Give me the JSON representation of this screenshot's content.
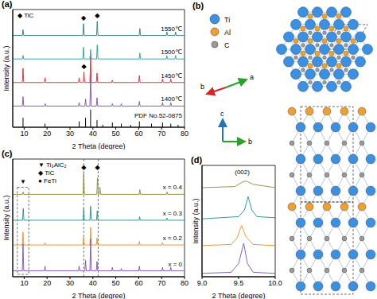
{
  "chart_data": [
    {
      "type": "line",
      "panel": "(a)",
      "x_label": "2 Theta (degree)",
      "y_label": "Intensity (a.u.)",
      "xlim": [
        5,
        80
      ],
      "xticks": [
        10,
        20,
        30,
        40,
        50,
        60,
        70,
        80
      ],
      "ylim": [
        0,
        100
      ],
      "yticks": [],
      "tick_labels": "x",
      "phase_key": [
        {
          "symbol": "◆",
          "name": "TiC"
        }
      ],
      "series": [
        {
          "name": "1550℃",
          "color": "#2d7a78",
          "x": [
            5,
            9.2,
            9.5,
            9.8,
            35.6,
            35.9,
            36.2,
            41.6,
            41.9,
            42.2,
            60.2,
            60.5,
            60.8,
            72.0,
            72.3,
            72.6,
            75.8,
            76.1,
            76.4,
            80
          ],
          "values": [
            78,
            78,
            83,
            78,
            78,
            88,
            78,
            78,
            90,
            78,
            78,
            84,
            78,
            78,
            81,
            78,
            78,
            81,
            78,
            78
          ]
        },
        {
          "name": "1500℃",
          "color": "#22a39a",
          "x": [
            5,
            9.2,
            9.5,
            9.8,
            35.6,
            35.9,
            36.2,
            38.7,
            39.0,
            39.3,
            41.6,
            41.9,
            42.2,
            60.2,
            60.5,
            60.8,
            72.0,
            72.3,
            72.6,
            75.8,
            76.1,
            76.4,
            80
          ],
          "values": [
            58,
            58,
            61,
            58,
            58,
            68,
            58,
            58,
            66,
            58,
            58,
            70,
            58,
            58,
            63,
            58,
            58,
            61,
            58,
            58,
            61,
            58,
            58
          ]
        },
        {
          "name": "1450℃",
          "color": "#d9262c",
          "x": [
            5,
            9.2,
            9.5,
            9.8,
            18.8,
            19.1,
            19.4,
            33.7,
            34.0,
            34.3,
            35.8,
            36.1,
            36.4,
            38.7,
            39.0,
            39.3,
            41.5,
            41.8,
            42.1,
            48.2,
            48.5,
            48.8,
            60.0,
            60.3,
            60.6,
            70.1,
            70.4,
            70.7,
            73.7,
            74.0,
            74.3,
            80
          ],
          "values": [
            38,
            38,
            50,
            38,
            38,
            42,
            38,
            38,
            42,
            38,
            38,
            47,
            38,
            38,
            60,
            38,
            38,
            46,
            38,
            38,
            40,
            38,
            38,
            44,
            38,
            38,
            41,
            38,
            38,
            41,
            38,
            38
          ]
        },
        {
          "name": "1400℃",
          "color": "#7d4fa8",
          "x": [
            5,
            9.2,
            9.5,
            9.8,
            18.9,
            19.2,
            19.5,
            33.7,
            34.0,
            34.3,
            36.5,
            36.8,
            37.1,
            38.7,
            39.0,
            39.3,
            41.5,
            41.8,
            42.1,
            48.2,
            48.5,
            48.8,
            52.1,
            52.4,
            52.7,
            60.0,
            60.3,
            60.6,
            70.1,
            70.4,
            70.7,
            73.7,
            74.0,
            74.3,
            80
          ],
          "values": [
            18,
            18,
            26,
            18,
            18,
            20,
            18,
            18,
            21,
            18,
            18,
            24,
            18,
            18,
            44,
            18,
            18,
            25,
            18,
            18,
            20,
            18,
            18,
            20,
            18,
            18,
            22,
            18,
            18,
            21,
            18,
            18,
            21,
            18,
            18
          ]
        }
      ],
      "reference": {
        "name": "PDF No.52-0875",
        "x": [
          9.5,
          19.1,
          34.0,
          36.8,
          39.0,
          41.8,
          44.3,
          48.5,
          52.4,
          56.5,
          60.3,
          65.6,
          70.4,
          74.0,
          77.2
        ],
        "values": [
          8,
          3,
          5,
          8,
          15,
          6,
          2,
          4,
          3,
          2,
          5,
          3,
          4,
          3,
          2
        ]
      },
      "annotations": [
        {
          "text": "◆",
          "x": 35.9,
          "y": 93
        },
        {
          "text": "◆",
          "x": 41.9,
          "y": 95
        },
        {
          "text": "◆",
          "x": 36.1,
          "y": 52
        }
      ]
    },
    {
      "type": "line",
      "panel": "(c)",
      "x_label": "2 Theta (degree)",
      "y_label": "Intensity (a.u.)",
      "xlim": [
        5,
        80
      ],
      "xticks": [
        10,
        20,
        30,
        40,
        50,
        60,
        70,
        80
      ],
      "ylim": [
        0,
        100
      ],
      "yticks": [],
      "tick_labels": "x",
      "phase_key": [
        {
          "symbol": "▼",
          "name": "Ti₃AlC₂"
        },
        {
          "symbol": "◆",
          "name": "TiC"
        },
        {
          "symbol": "●",
          "name": "FeTi"
        }
      ],
      "series": [
        {
          "name": "x = 0.4",
          "color": "#8c8a3a",
          "x": [
            5,
            9.2,
            9.5,
            9.8,
            35.7,
            36.0,
            36.3,
            41.7,
            42.0,
            42.3,
            42.8,
            43.1,
            43.4,
            60.2,
            60.5,
            60.8,
            72.1,
            72.4,
            72.7,
            80
          ],
          "values": [
            70,
            70,
            72,
            70,
            70,
            88,
            70,
            70,
            84,
            70,
            70,
            76,
            70,
            70,
            74,
            70,
            70,
            72,
            70,
            70
          ]
        },
        {
          "name": "x = 0.3",
          "color": "#1f8f8a",
          "x": [
            5,
            9.3,
            9.6,
            9.9,
            35.7,
            36.0,
            36.3,
            38.7,
            39.0,
            39.3,
            41.6,
            41.9,
            42.2,
            60.1,
            60.4,
            60.7,
            72.0,
            72.3,
            72.6,
            80
          ],
          "values": [
            48,
            48,
            58,
            48,
            48,
            58,
            48,
            48,
            60,
            48,
            48,
            56,
            48,
            48,
            51,
            48,
            48,
            50,
            48,
            48
          ]
        },
        {
          "name": "x = 0.2",
          "color": "#f08a24",
          "x": [
            5,
            9.2,
            9.5,
            9.8,
            18.8,
            19.1,
            19.4,
            35.7,
            36.0,
            36.3,
            38.7,
            39.0,
            39.3,
            41.5,
            41.8,
            42.1,
            60.0,
            60.3,
            60.6,
            70.1,
            70.4,
            70.7,
            80
          ],
          "values": [
            27,
            27,
            38,
            27,
            27,
            29,
            27,
            27,
            34,
            27,
            27,
            42,
            27,
            27,
            33,
            27,
            27,
            30,
            27,
            27,
            29,
            27,
            27
          ]
        },
        {
          "name": "x = 0",
          "color": "#7d4fa8",
          "x": [
            5,
            9.2,
            9.5,
            9.8,
            18.8,
            19.1,
            19.4,
            33.7,
            34.0,
            34.3,
            36.5,
            36.8,
            37.1,
            38.7,
            39.0,
            39.3,
            41.5,
            41.8,
            42.1,
            48.2,
            48.5,
            48.8,
            52.1,
            52.4,
            52.7,
            60.0,
            60.3,
            60.6,
            70.1,
            70.4,
            70.7,
            73.7,
            74.0,
            74.3,
            80
          ],
          "values": [
            5,
            5,
            28,
            5,
            5,
            9,
            5,
            5,
            9,
            5,
            5,
            14,
            5,
            5,
            32,
            5,
            5,
            13,
            5,
            5,
            8,
            5,
            5,
            7,
            5,
            5,
            9,
            5,
            5,
            8,
            5,
            5,
            8,
            5,
            5
          ]
        }
      ],
      "highlight": {
        "x": [
          7,
          12
        ],
        "y": [
          2,
          76
        ]
      },
      "ref_lines": [
        36,
        42.3
      ],
      "annotations": [
        {
          "text": "▼",
          "x": 9.5,
          "y": 81
        },
        {
          "text": "◆",
          "x": 36,
          "y": 93
        },
        {
          "text": "◆",
          "x": 42,
          "y": 93
        }
      ]
    },
    {
      "type": "line",
      "panel": "(d)",
      "x_label": "2 Theta (degree)",
      "y_label": "Intensity (a.u.)",
      "xlim": [
        9,
        10
      ],
      "xticks": [
        {
          "value": 9,
          "label": "9.0"
        },
        9.5,
        {
          "value": 10,
          "label": "10.0"
        }
      ],
      "ylim": [
        0,
        100
      ],
      "yticks": [],
      "tick_labels": "x",
      "series": [
        {
          "color": "#8c8a3a",
          "x": [
            9.0,
            9.45,
            9.55,
            9.6,
            9.7,
            10.0
          ],
          "values": [
            80,
            81,
            85,
            86,
            83,
            80
          ]
        },
        {
          "color": "#1f8f8a",
          "x": [
            9.0,
            9.5,
            9.58,
            9.63,
            9.68,
            9.75,
            10.0
          ],
          "values": [
            52,
            54,
            60,
            72,
            60,
            54,
            53
          ]
        },
        {
          "color": "#f08a24",
          "x": [
            9.0,
            9.4,
            9.48,
            9.54,
            9.6,
            9.7,
            10.0
          ],
          "values": [
            28,
            29,
            35,
            46,
            36,
            29,
            28
          ]
        },
        {
          "color": "#7d4fa8",
          "x": [
            9.0,
            9.4,
            9.5,
            9.57,
            9.62,
            9.7,
            10.0
          ],
          "values": [
            3,
            4,
            12,
            30,
            12,
            4,
            3
          ]
        }
      ],
      "annotations": [
        {
          "text": "(002)",
          "x": 9.55,
          "y": 94
        }
      ]
    }
  ],
  "structure": {
    "panel": "(b)",
    "atoms": [
      {
        "label": "Ti",
        "color": "#3d8fe0"
      },
      {
        "label": "Al",
        "color": "#f0a030"
      },
      {
        "label": "C",
        "color": "#9a9a9a"
      }
    ],
    "plane_axes": [
      "b",
      "a"
    ],
    "side_axes": [
      "c",
      "b"
    ]
  }
}
